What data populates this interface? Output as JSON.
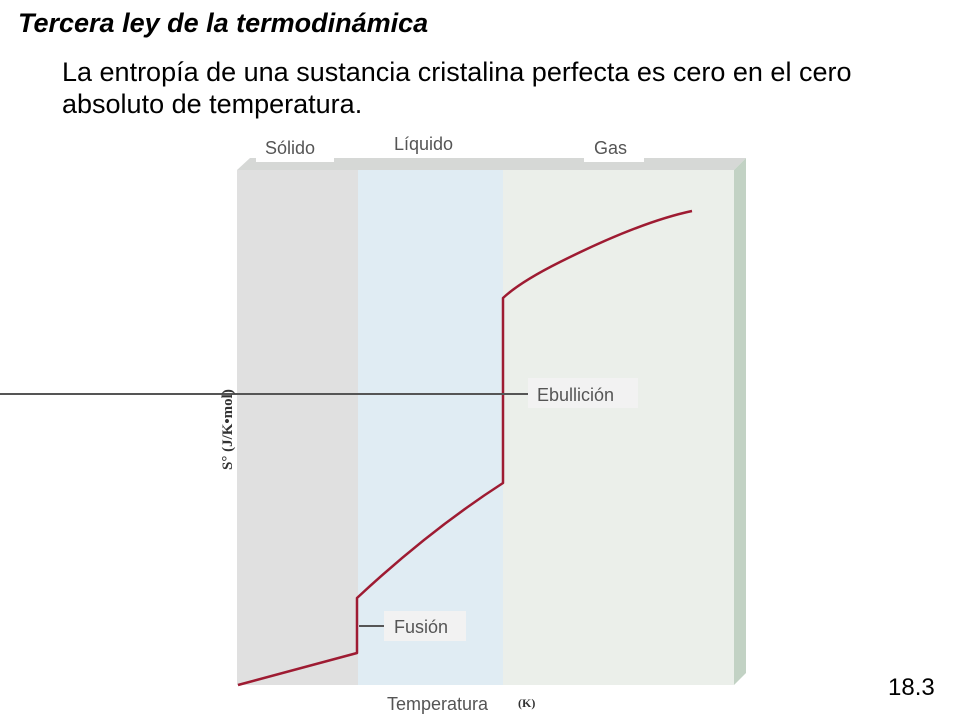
{
  "slide": {
    "title": "Tercera ley de la termodinámica",
    "statement": "La entropía de una sustancia cristalina perfecta es cero en el cero absoluto de temperatura.",
    "number": "18.3"
  },
  "diagram": {
    "phases": {
      "solid": "Sólido",
      "liquid": "Líquido",
      "gas": "Gas"
    },
    "annotations": {
      "fusion": "Fusión",
      "boiling": "Ebullición"
    },
    "y_axis": {
      "label": "S° (J/K•mol)"
    },
    "x_axis": {
      "label": "Temperatura",
      "unit": "(K)"
    },
    "colors": {
      "solid_region": "#e0e0e0",
      "liquid_region": "#e0ecf3",
      "gas_region": "#ebefea",
      "curve": "#9e1b32",
      "side_edge": "#c2d2c4"
    }
  }
}
